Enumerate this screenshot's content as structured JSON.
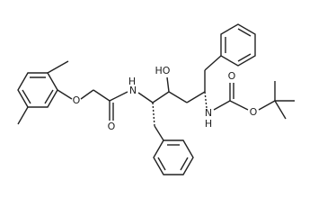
{
  "atoms": [
    {
      "label": "O"
    },
    {
      "label": "O"
    },
    {
      "label": "N"
    },
    {
      "label": "H"
    },
    {
      "label": "HO"
    },
    {
      "label": "N"
    },
    {
      "label": "H"
    },
    {
      "label": "O"
    },
    {
      "label": "O"
    }
  ]
}
